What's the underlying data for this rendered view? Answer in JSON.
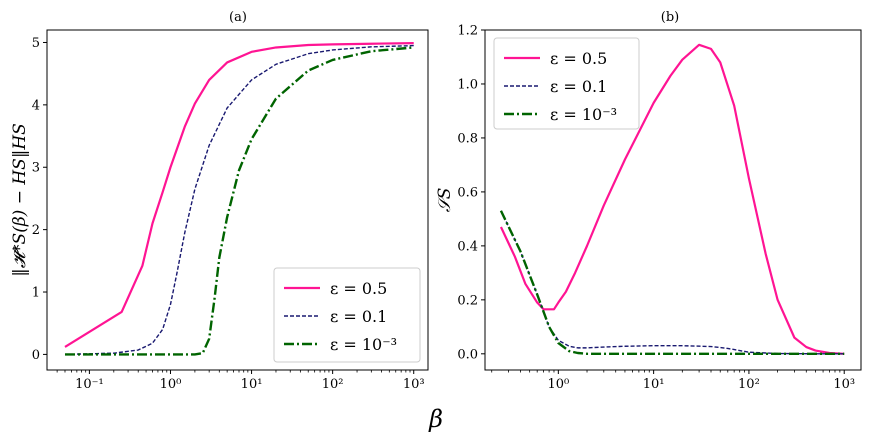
{
  "figure": {
    "xlabel": "β",
    "colors": {
      "s05": "#ff1493",
      "s01": "#191970",
      "s1e3": "#006400"
    }
  },
  "chart_data": [
    {
      "type": "line",
      "title": "(a)",
      "xlabel": "",
      "ylabel": "‖𝓗*S(β) − HS‖HS",
      "xscale": "log",
      "xlim": [
        0.03,
        1500
      ],
      "ylim": [
        -0.25,
        5.2
      ],
      "xticks": [
        0.1,
        1,
        10,
        100,
        1000
      ],
      "xtick_labels": [
        "10⁻¹",
        "10⁰",
        "10¹",
        "10²",
        "10³"
      ],
      "yticks": [
        0,
        1,
        2,
        3,
        4,
        5
      ],
      "ytick_labels": [
        "0",
        "1",
        "2",
        "3",
        "4",
        "5"
      ],
      "legend": "bottom-right",
      "grid": false,
      "series": [
        {
          "name": "ε = 0.5",
          "color": "#ff1493",
          "dash": "solid",
          "x": [
            0.05,
            0.25,
            0.45,
            0.6,
            0.8,
            1,
            1.5,
            2,
            3,
            5,
            10,
            20,
            50,
            100,
            300,
            1000
          ],
          "y": [
            0.12,
            0.68,
            1.42,
            2.1,
            2.6,
            3.0,
            3.65,
            4.02,
            4.4,
            4.68,
            4.85,
            4.92,
            4.96,
            4.97,
            4.98,
            4.99
          ]
        },
        {
          "name": "ε = 0.1",
          "color": "#191970",
          "dash": "dashed",
          "x": [
            0.05,
            0.2,
            0.4,
            0.6,
            0.8,
            1,
            1.2,
            1.5,
            2,
            3,
            5,
            10,
            20,
            50,
            100,
            300,
            1000
          ],
          "y": [
            0.0,
            0.02,
            0.07,
            0.18,
            0.4,
            0.8,
            1.3,
            1.95,
            2.65,
            3.35,
            3.95,
            4.4,
            4.65,
            4.82,
            4.88,
            4.93,
            4.95
          ]
        },
        {
          "name": "ε = 10⁻³",
          "color": "#006400",
          "dash": "dashdot",
          "x": [
            0.05,
            1,
            2,
            2.5,
            3,
            3.5,
            4,
            5,
            7,
            10,
            20,
            50,
            100,
            300,
            1000
          ],
          "y": [
            0.0,
            0.0,
            0.0,
            0.02,
            0.25,
            0.9,
            1.55,
            2.2,
            2.95,
            3.45,
            4.1,
            4.55,
            4.72,
            4.86,
            4.92
          ]
        }
      ]
    },
    {
      "type": "line",
      "title": "(b)",
      "xlabel": "",
      "ylabel": "𝒮S",
      "xscale": "log",
      "xlim": [
        0.17,
        1500
      ],
      "ylim": [
        -0.06,
        1.2
      ],
      "xticks": [
        1,
        10,
        100,
        1000
      ],
      "xtick_labels": [
        "10⁰",
        "10¹",
        "10²",
        "10³"
      ],
      "yticks": [
        0,
        0.2,
        0.4,
        0.6,
        0.8,
        1.0,
        1.2
      ],
      "ytick_labels": [
        "0.0",
        "0.2",
        "0.4",
        "0.6",
        "0.8",
        "1.0",
        "1.2"
      ],
      "legend": "top-left",
      "grid": false,
      "series": [
        {
          "name": "ε = 0.5",
          "color": "#ff1493",
          "dash": "solid",
          "x": [
            0.25,
            0.35,
            0.45,
            0.6,
            0.7,
            0.8,
            0.9,
            1.0,
            1.2,
            1.5,
            2,
            3,
            5,
            10,
            15,
            20,
            30,
            40,
            50,
            70,
            100,
            150,
            200,
            300,
            400,
            500,
            700,
            1000
          ],
          "y": [
            0.47,
            0.36,
            0.26,
            0.19,
            0.165,
            0.165,
            0.165,
            0.19,
            0.23,
            0.3,
            0.4,
            0.55,
            0.72,
            0.93,
            1.03,
            1.09,
            1.145,
            1.13,
            1.08,
            0.92,
            0.65,
            0.37,
            0.2,
            0.06,
            0.025,
            0.012,
            0.003,
            0.0
          ]
        },
        {
          "name": "ε = 0.1",
          "color": "#191970",
          "dash": "dashed",
          "x": [
            0.25,
            0.4,
            0.6,
            0.8,
            1.0,
            1.3,
            1.6,
            2,
            3,
            5,
            10,
            20,
            40,
            60,
            80,
            100,
            200,
            500,
            1000
          ],
          "y": [
            0.53,
            0.38,
            0.22,
            0.1,
            0.05,
            0.028,
            0.022,
            0.022,
            0.025,
            0.028,
            0.03,
            0.03,
            0.027,
            0.02,
            0.012,
            0.006,
            0.001,
            0.0,
            0.0
          ]
        },
        {
          "name": "ε = 10⁻³",
          "color": "#006400",
          "dash": "dashdot",
          "x": [
            0.25,
            0.4,
            0.6,
            0.8,
            1.0,
            1.3,
            1.6,
            2,
            5,
            10,
            100,
            1000
          ],
          "y": [
            0.53,
            0.38,
            0.22,
            0.1,
            0.04,
            0.01,
            0.003,
            0.0,
            0.0,
            0.0,
            0.0,
            0.0
          ]
        }
      ]
    }
  ]
}
